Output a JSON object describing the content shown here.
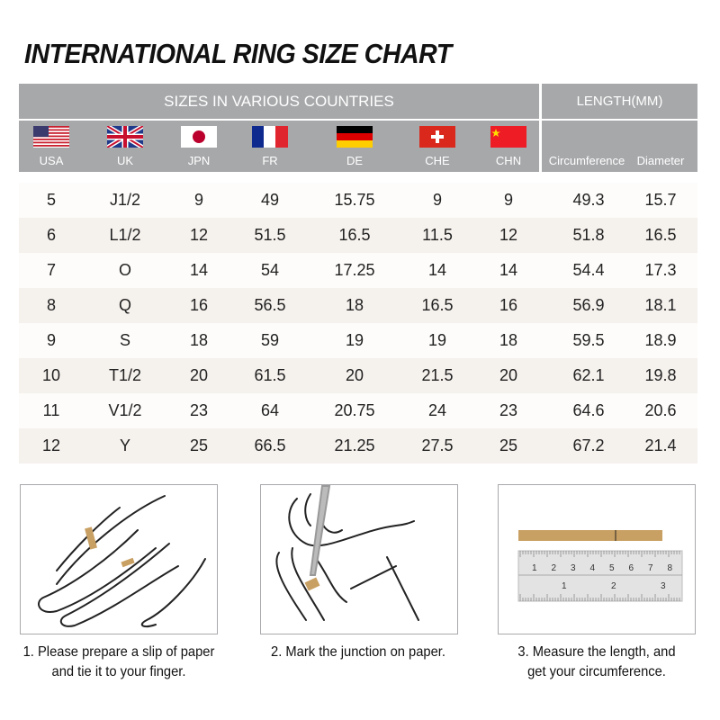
{
  "title": "INTERNATIONAL RING SIZE CHART",
  "header": {
    "sizes_label": "SIZES IN VARIOUS COUNTRIES",
    "length_label": "LENGTH(MM)",
    "countries": [
      {
        "code": "USA",
        "flag": "us-flag"
      },
      {
        "code": "UK",
        "flag": "uk-flag"
      },
      {
        "code": "JPN",
        "flag": "japan-flag"
      },
      {
        "code": "FR",
        "flag": "france-flag"
      },
      {
        "code": "DE",
        "flag": "germany-flag"
      },
      {
        "code": "CHE",
        "flag": "switzerland-flag"
      },
      {
        "code": "CHN",
        "flag": "china-flag"
      }
    ],
    "circumference": "Circumference",
    "diameter": "Diameter"
  },
  "rows": [
    [
      "5",
      "J1/2",
      "9",
      "49",
      "15.75",
      "9",
      "9",
      "49.3",
      "15.7"
    ],
    [
      "6",
      "L1/2",
      "12",
      "51.5",
      "16.5",
      "11.5",
      "12",
      "51.8",
      "16.5"
    ],
    [
      "7",
      "O",
      "14",
      "54",
      "17.25",
      "14",
      "14",
      "54.4",
      "17.3"
    ],
    [
      "8",
      "Q",
      "16",
      "56.5",
      "18",
      "16.5",
      "16",
      "56.9",
      "18.1"
    ],
    [
      "9",
      "S",
      "18",
      "59",
      "19",
      "19",
      "18",
      "59.5",
      "18.9"
    ],
    [
      "10",
      "T1/2",
      "20",
      "61.5",
      "20",
      "21.5",
      "20",
      "62.1",
      "19.8"
    ],
    [
      "11",
      "V1/2",
      "23",
      "64",
      "20.75",
      "24",
      "23",
      "64.6",
      "20.6"
    ],
    [
      "12",
      "Y",
      "25",
      "66.5",
      "21.25",
      "27.5",
      "25",
      "67.2",
      "21.4"
    ]
  ],
  "steps": [
    {
      "line1": "1. Please prepare a slip of paper",
      "line2": "and tie it to your finger."
    },
    {
      "line1": "2. Mark the junction on paper.",
      "line2": ""
    },
    {
      "line1": "3. Measure the length, and",
      "line2": "get your circumference."
    }
  ],
  "ruler": {
    "top_numbers": [
      "1",
      "2",
      "3",
      "4",
      "5",
      "6",
      "7",
      "8"
    ],
    "bottom_numbers": [
      "1",
      "2",
      "3"
    ]
  },
  "colors": {
    "header": "#a7a8aa",
    "row_alt": "#f5f1ed",
    "row": "#fdfcfa",
    "paper_strip": "#c9a063"
  }
}
